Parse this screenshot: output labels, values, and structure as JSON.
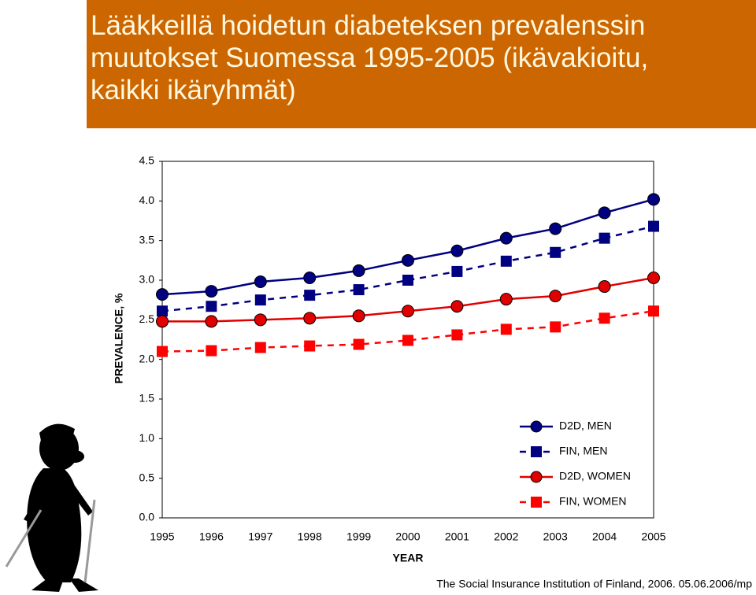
{
  "chart_data": {
    "type": "line",
    "title": "Lääkkeillä hoidetun diabeteksen prevalenssin muutokset Suomessa 1995-2005 (ikävakioitu, kaikki ikäryhmät)",
    "x_label": "YEAR",
    "y_label": "PREVALENCE, %",
    "categories": [
      "1995",
      "1996",
      "1997",
      "1998",
      "1999",
      "2000",
      "2001",
      "2002",
      "2003",
      "2004",
      "2005"
    ],
    "series": [
      {
        "name": "D2D, MEN",
        "color": "#000080",
        "dash": false,
        "marker": "circle",
        "values": [
          2.82,
          2.86,
          2.98,
          3.03,
          3.12,
          3.25,
          3.37,
          3.53,
          3.65,
          3.85,
          4.02
        ]
      },
      {
        "name": "FIN, MEN",
        "color": "#000080",
        "dash": true,
        "marker": "square",
        "values": [
          2.61,
          2.67,
          2.75,
          2.81,
          2.88,
          3.0,
          3.11,
          3.24,
          3.35,
          3.53,
          3.68
        ]
      },
      {
        "name": "D2D, WOMEN",
        "color": "#e00000",
        "dash": false,
        "marker": "circle",
        "values": [
          2.48,
          2.48,
          2.5,
          2.52,
          2.55,
          2.61,
          2.67,
          2.76,
          2.8,
          2.92,
          3.03
        ]
      },
      {
        "name": "FIN, WOMEN",
        "color": "#ff0000",
        "dash": true,
        "marker": "square",
        "values": [
          2.1,
          2.11,
          2.15,
          2.17,
          2.19,
          2.24,
          2.31,
          2.38,
          2.41,
          2.52,
          2.61
        ]
      }
    ],
    "ylim": [
      0,
      4.5
    ],
    "yticks": [
      {
        "value": 0,
        "label": "0.0"
      },
      0.5,
      {
        "value": 1,
        "label": "1.0"
      },
      1.5,
      {
        "value": 2,
        "label": "2.0"
      },
      2.5,
      {
        "value": 3,
        "label": "3.0"
      },
      3.5,
      {
        "value": 4,
        "label": "4.0"
      },
      4.5
    ],
    "grid": false,
    "legend": "lower right"
  },
  "footer": "The Social Insurance Institution of Finland, 2006. 05.06.2006/mp"
}
